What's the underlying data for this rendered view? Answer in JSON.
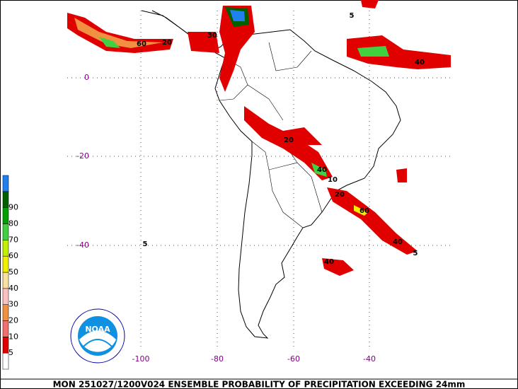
{
  "map": {
    "title": "MON 251027/1200V024  ENSEMBLE PROBABILITY OF PRECIPITATION EXCEEDING 24mm",
    "lat_labels": [
      "0",
      "-20",
      "-40"
    ],
    "lon_labels": [
      "-100",
      "-80",
      "-60",
      "-40"
    ],
    "colorbar": {
      "levels": [
        5,
        10,
        20,
        30,
        40,
        50,
        60,
        70,
        80,
        90
      ],
      "colors": [
        "#ffffff",
        "#e00000",
        "#f07070",
        "#f09040",
        "#f8c0c0",
        "#f8e0a0",
        "#f0f000",
        "#c0f000",
        "#40d040",
        "#00a000",
        "#006000",
        "#2080f0"
      ]
    },
    "logo_text": "NOAA",
    "contour_labels": [
      "5",
      "5",
      "40",
      "60",
      "20",
      "40",
      "5",
      "40",
      "60",
      "20",
      "20",
      "40",
      "10",
      "30"
    ]
  }
}
